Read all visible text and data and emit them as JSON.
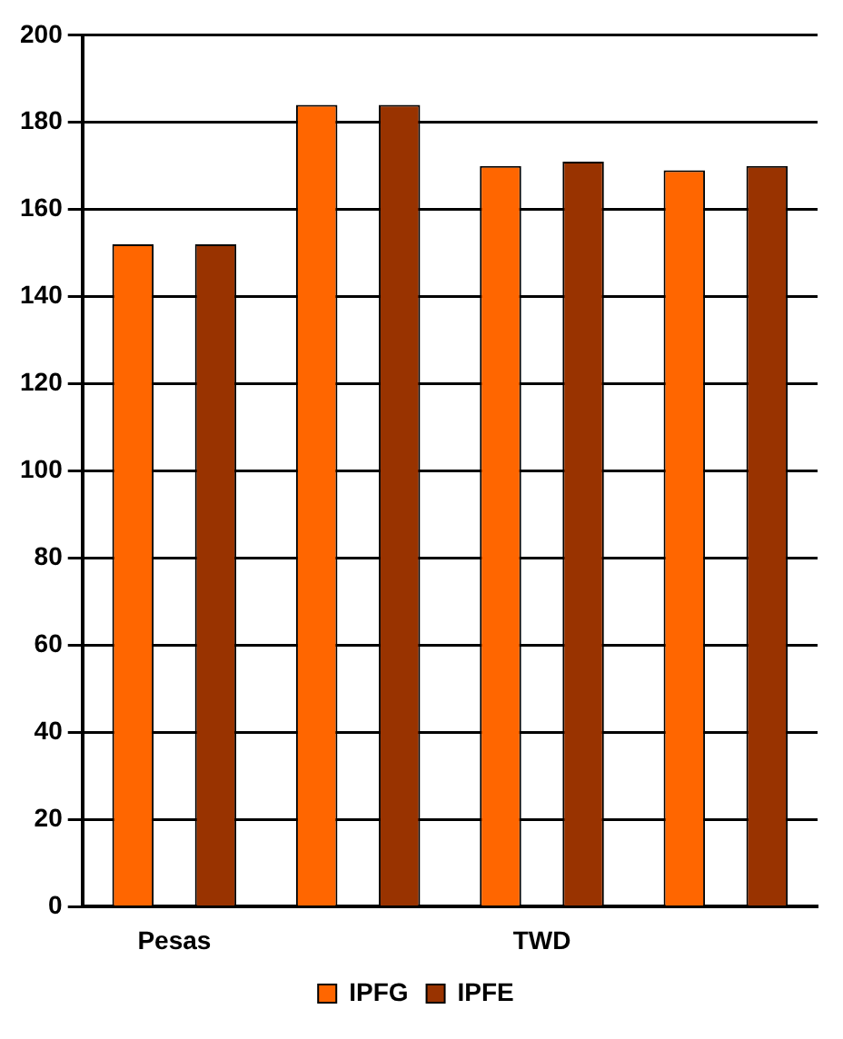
{
  "chart_data": {
    "type": "bar",
    "categories": [
      "Pesas",
      null,
      "TWD",
      null
    ],
    "series": [
      {
        "name": "IPFG",
        "color": "#ff6600",
        "values": [
          152,
          184,
          170,
          169
        ]
      },
      {
        "name": "IPFE",
        "color": "#993300",
        "values": [
          152,
          184,
          171,
          170
        ]
      }
    ],
    "ylim": [
      0,
      200
    ],
    "yticks": [
      0,
      20,
      40,
      60,
      80,
      100,
      120,
      140,
      160,
      180,
      200
    ],
    "grid": "y",
    "legend": "bottom"
  }
}
